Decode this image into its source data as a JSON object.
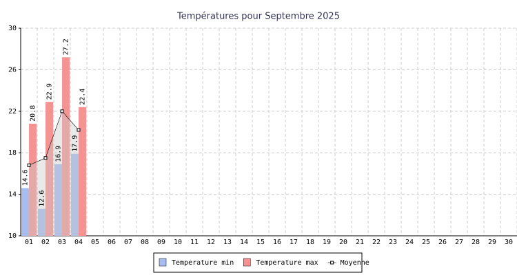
{
  "chart_data": {
    "type": "bar",
    "title": "Températures pour Septembre 2025",
    "categories": [
      "01",
      "02",
      "03",
      "04",
      "05",
      "06",
      "07",
      "08",
      "09",
      "10",
      "11",
      "12",
      "13",
      "14",
      "15",
      "16",
      "17",
      "18",
      "19",
      "20",
      "21",
      "22",
      "23",
      "24",
      "25",
      "26",
      "27",
      "28",
      "29",
      "30"
    ],
    "series": [
      {
        "name": "Temperature min",
        "color": "#a7bdf0",
        "values": [
          14.6,
          12.6,
          16.9,
          17.9,
          null,
          null,
          null,
          null,
          null,
          null,
          null,
          null,
          null,
          null,
          null,
          null,
          null,
          null,
          null,
          null,
          null,
          null,
          null,
          null,
          null,
          null,
          null,
          null,
          null,
          null
        ]
      },
      {
        "name": "Temperature max",
        "color": "#f59393",
        "values": [
          20.8,
          22.9,
          27.2,
          22.4,
          null,
          null,
          null,
          null,
          null,
          null,
          null,
          null,
          null,
          null,
          null,
          null,
          null,
          null,
          null,
          null,
          null,
          null,
          null,
          null,
          null,
          null,
          null,
          null,
          null,
          null
        ]
      },
      {
        "name": "Moyenne",
        "type": "line",
        "color": "#000000",
        "values": [
          16.8,
          17.5,
          22.0,
          20.2,
          null,
          null,
          null,
          null,
          null,
          null,
          null,
          null,
          null,
          null,
          null,
          null,
          null,
          null,
          null,
          null,
          null,
          null,
          null,
          null,
          null,
          null,
          null,
          null,
          null,
          null
        ]
      }
    ],
    "ylim": [
      10,
      30
    ],
    "yticks": [
      10,
      14,
      18,
      22,
      26,
      30
    ],
    "grid": true,
    "legend": "bottom"
  }
}
